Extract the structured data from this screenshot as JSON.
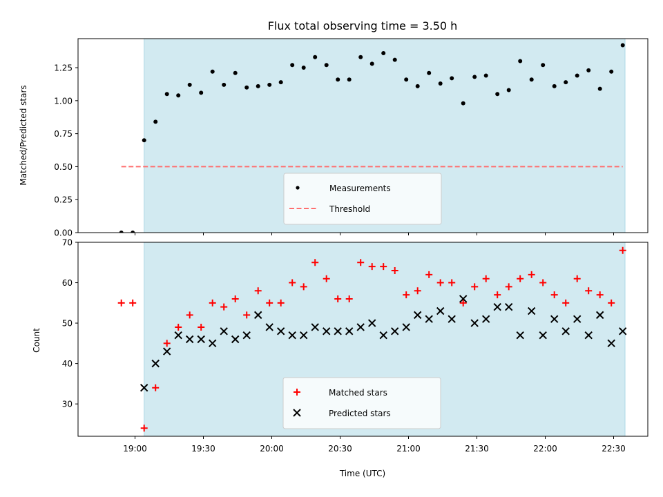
{
  "chart_data": [
    {
      "type": "scatter",
      "title": "Flux total observing time = 3.50 h",
      "xlabel": "",
      "ylabel": "Matched/Predicted stars",
      "ylim": [
        0,
        1.47
      ],
      "yticks": [
        "0.00",
        "0.25",
        "0.50",
        "0.75",
        "1.00",
        "1.25"
      ],
      "ytick_values": [
        0,
        0.25,
        0.5,
        0.75,
        1.0,
        1.25
      ],
      "xlim": [
        "18:35",
        "22:45"
      ],
      "xticks_shown": false,
      "shaded_span": [
        "19:04",
        "22:35"
      ],
      "shade_color": "#add8e6",
      "legend_position": "lower-center",
      "series": [
        {
          "name": "Measurements",
          "marker": "dot",
          "color": "#000000",
          "x": [
            "18:54",
            "18:59",
            "19:04",
            "19:09",
            "19:14",
            "19:19",
            "19:24",
            "19:29",
            "19:34",
            "19:39",
            "19:44",
            "19:49",
            "19:54",
            "19:59",
            "20:04",
            "20:09",
            "20:14",
            "20:19",
            "20:24",
            "20:29",
            "20:34",
            "20:39",
            "20:44",
            "20:49",
            "20:54",
            "20:59",
            "21:04",
            "21:09",
            "21:14",
            "21:19",
            "21:24",
            "21:29",
            "21:34",
            "21:39",
            "21:44",
            "21:49",
            "21:54",
            "21:59",
            "22:04",
            "22:09",
            "22:14",
            "22:19",
            "22:24",
            "22:29",
            "22:34"
          ],
          "y": [
            0.0,
            0.0,
            0.7,
            0.84,
            1.05,
            1.04,
            1.12,
            1.06,
            1.22,
            1.12,
            1.21,
            1.1,
            1.11,
            1.12,
            1.14,
            1.27,
            1.25,
            1.33,
            1.27,
            1.16,
            1.16,
            1.33,
            1.28,
            1.36,
            1.31,
            1.16,
            1.11,
            1.21,
            1.13,
            1.17,
            0.98,
            1.18,
            1.19,
            1.05,
            1.08,
            1.3,
            1.16,
            1.27,
            1.11,
            1.14,
            1.19,
            1.23,
            1.09,
            1.22,
            1.42
          ]
        },
        {
          "name": "Threshold",
          "style": "dashed",
          "color": "#ff6f6f",
          "x": [
            "18:54",
            "22:34"
          ],
          "y": [
            0.5,
            0.5
          ]
        }
      ]
    },
    {
      "type": "scatter",
      "title": "",
      "xlabel": "Time (UTC)",
      "ylabel": "Count",
      "ylim": [
        22,
        70
      ],
      "yticks": [
        "30",
        "40",
        "50",
        "60",
        "70"
      ],
      "ytick_values": [
        30,
        40,
        50,
        60,
        70
      ],
      "xlim": [
        "18:35",
        "22:45"
      ],
      "xticks": [
        "19:00",
        "19:30",
        "20:00",
        "20:30",
        "21:00",
        "21:30",
        "22:00",
        "22:30"
      ],
      "shaded_span": [
        "19:04",
        "22:35"
      ],
      "shade_color": "#add8e6",
      "legend_position": "lower-center",
      "series": [
        {
          "name": "Matched stars",
          "marker": "plus",
          "color": "#ff0000",
          "x": [
            "18:54",
            "18:59",
            "19:04",
            "19:09",
            "19:14",
            "19:19",
            "19:24",
            "19:29",
            "19:34",
            "19:39",
            "19:44",
            "19:49",
            "19:54",
            "19:59",
            "20:04",
            "20:09",
            "20:14",
            "20:19",
            "20:24",
            "20:29",
            "20:34",
            "20:39",
            "20:44",
            "20:49",
            "20:54",
            "20:59",
            "21:04",
            "21:09",
            "21:14",
            "21:19",
            "21:24",
            "21:29",
            "21:34",
            "21:39",
            "21:44",
            "21:49",
            "21:54",
            "21:59",
            "22:04",
            "22:09",
            "22:14",
            "22:19",
            "22:24",
            "22:29",
            "22:34"
          ],
          "y": [
            55,
            55,
            24,
            34,
            45,
            49,
            52,
            49,
            55,
            54,
            56,
            52,
            58,
            55,
            55,
            60,
            59,
            65,
            61,
            56,
            56,
            65,
            64,
            64,
            63,
            57,
            58,
            62,
            60,
            60,
            55,
            59,
            61,
            57,
            59,
            61,
            62,
            60,
            57,
            55,
            61,
            58,
            57,
            55,
            68
          ]
        },
        {
          "name": "Predicted stars",
          "marker": "x",
          "color": "#000000",
          "x": [
            "19:04",
            "19:09",
            "19:14",
            "19:19",
            "19:24",
            "19:29",
            "19:34",
            "19:39",
            "19:44",
            "19:49",
            "19:54",
            "19:59",
            "20:04",
            "20:09",
            "20:14",
            "20:19",
            "20:24",
            "20:29",
            "20:34",
            "20:39",
            "20:44",
            "20:49",
            "20:54",
            "20:59",
            "21:04",
            "21:09",
            "21:14",
            "21:19",
            "21:24",
            "21:29",
            "21:34",
            "21:39",
            "21:44",
            "21:49",
            "21:54",
            "21:59",
            "22:04",
            "22:09",
            "22:14",
            "22:19",
            "22:24",
            "22:29",
            "22:34"
          ],
          "y": [
            34,
            40,
            43,
            47,
            46,
            46,
            45,
            48,
            46,
            47,
            52,
            49,
            48,
            47,
            47,
            49,
            48,
            48,
            48,
            49,
            50,
            47,
            48,
            49,
            52,
            51,
            53,
            51,
            56,
            50,
            51,
            54,
            54,
            47,
            53,
            47,
            51,
            48,
            51,
            47,
            52,
            45,
            48
          ]
        }
      ]
    }
  ]
}
